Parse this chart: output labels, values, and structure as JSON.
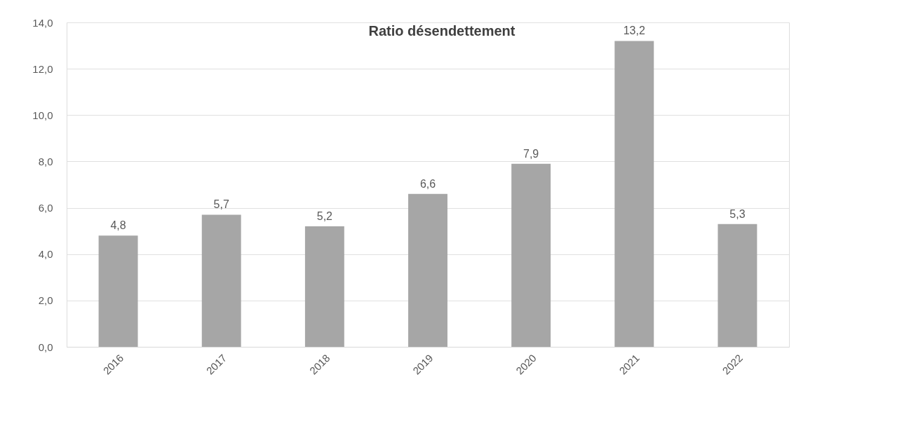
{
  "chart_data": {
    "type": "bar",
    "title": "Ratio désendettement",
    "categories": [
      "2016",
      "2017",
      "2018",
      "2019",
      "2020",
      "2021",
      "2022"
    ],
    "values": [
      4.8,
      5.7,
      5.2,
      6.6,
      7.9,
      13.2,
      5.3
    ],
    "value_labels": [
      "4,8",
      "5,7",
      "5,2",
      "6,6",
      "7,9",
      "13,2",
      "5,3"
    ],
    "color": "#a6a6a6",
    "ylim": [
      0,
      14
    ],
    "yticks": [
      {
        "value": 0,
        "label": "0,0"
      },
      {
        "value": 2,
        "label": "2,0"
      },
      {
        "value": 4,
        "label": "4,0"
      },
      {
        "value": 6,
        "label": "6,0"
      },
      {
        "value": 8,
        "label": "8,0"
      },
      {
        "value": 10,
        "label": "10,0"
      },
      {
        "value": 12,
        "label": "12,0"
      },
      {
        "value": 14,
        "label": "14,0"
      }
    ],
    "grid": "y"
  }
}
